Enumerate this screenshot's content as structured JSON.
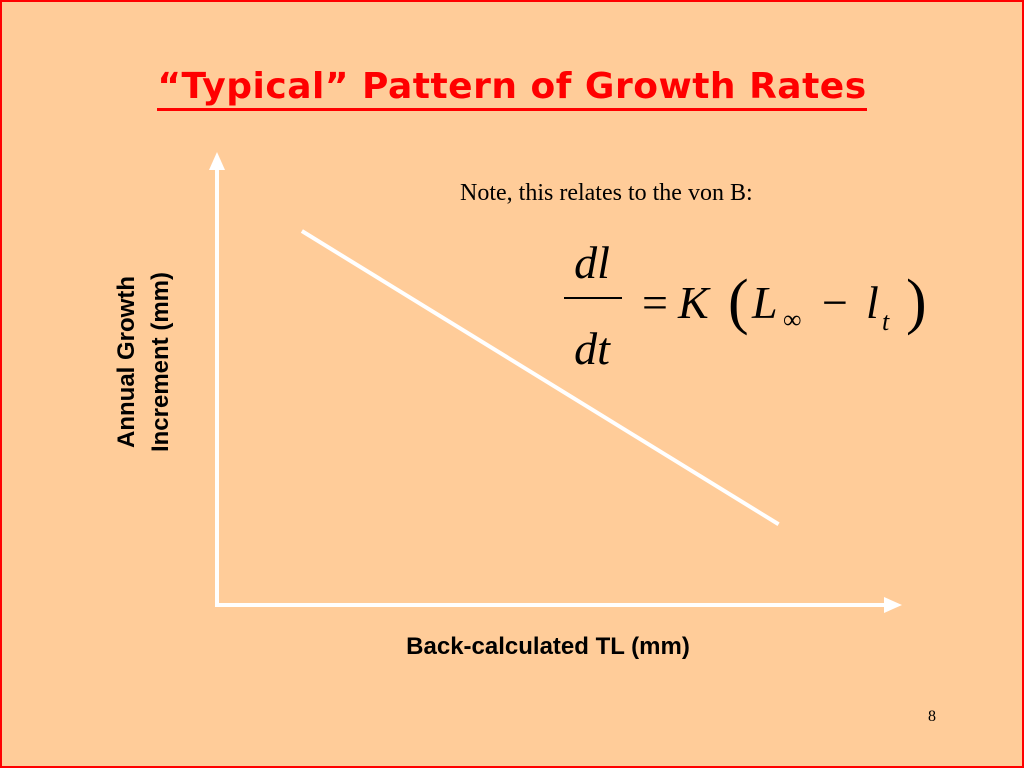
{
  "slide": {
    "title": "“Typical” Pattern of Growth Rates",
    "note": "Note, this relates to the von B:",
    "page_number": "8",
    "equation": {
      "lhs_numerator": "dl",
      "lhs_denominator": "dt",
      "equals": "=",
      "K": "K",
      "L": "L",
      "infinity": "∞",
      "minus": "−",
      "l": "l",
      "t_subscript": "t",
      "paren_open": "(",
      "paren_close": ")"
    },
    "colors": {
      "background": "#ffcc99",
      "title": "#ff0000",
      "border": "#ff0000",
      "lines": "#ffffff",
      "text": "#000000"
    }
  },
  "chart_data": {
    "type": "line",
    "title": "",
    "xlabel": "Back-calculated TL (mm)",
    "ylabel_lines": [
      "Annual Growth",
      "Increment (mm)"
    ],
    "axis_ticks": false,
    "grid": false,
    "xlim": [
      0,
      1
    ],
    "ylim": [
      0,
      1
    ],
    "series": [
      {
        "x": [
          0.13,
          0.86
        ],
        "y": [
          0.88,
          0.19
        ]
      }
    ]
  }
}
